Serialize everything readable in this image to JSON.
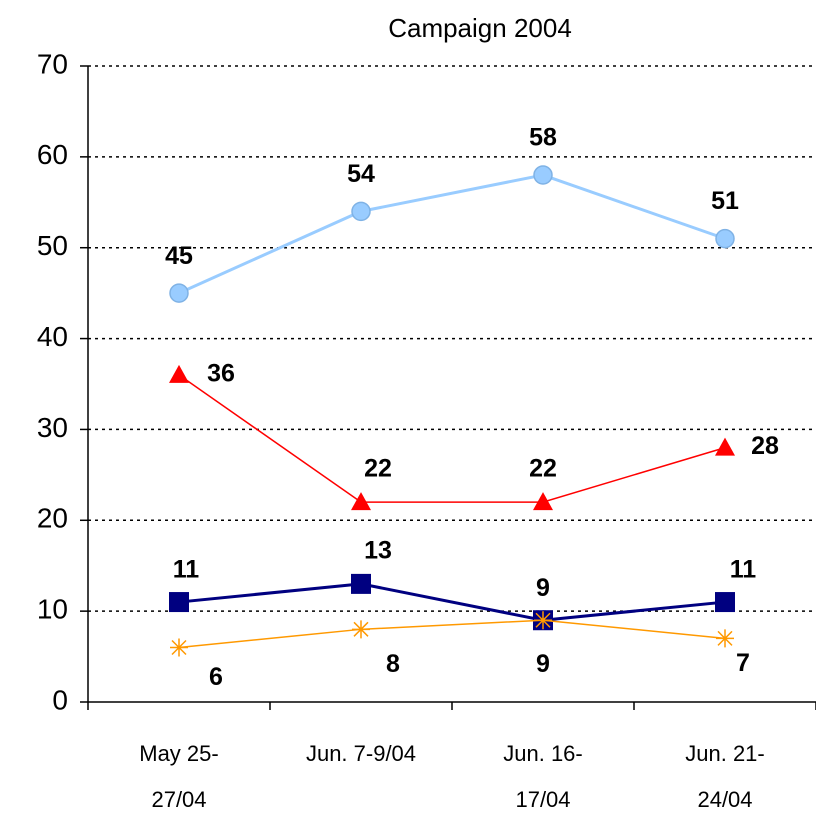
{
  "chart_data": {
    "type": "line",
    "title": "Campaign 2004",
    "categories": [
      [
        "May 25-",
        "27/04"
      ],
      [
        "Jun. 7-9/04"
      ],
      [
        "Jun. 16-",
        "17/04"
      ],
      [
        "Jun. 21-",
        "24/04"
      ]
    ],
    "series": [
      {
        "color": "#99ccff",
        "marker": "circle",
        "values": [
          45,
          54,
          58,
          51
        ]
      },
      {
        "color": "#ff0000",
        "marker": "triangle",
        "values": [
          36,
          22,
          22,
          28
        ]
      },
      {
        "color": "#000080",
        "marker": "square",
        "values": [
          11,
          13,
          9,
          11
        ]
      },
      {
        "color": "#ff9900",
        "marker": "asterisk",
        "values": [
          6,
          8,
          9,
          7
        ]
      }
    ],
    "ylim": [
      0,
      70
    ],
    "yticks": [
      0,
      10,
      20,
      30,
      40,
      50,
      60,
      70
    ],
    "grid": true
  }
}
